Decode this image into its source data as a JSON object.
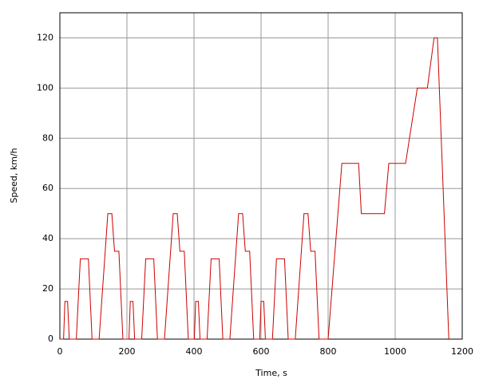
{
  "chart_data": {
    "type": "line",
    "xlabel": "Time, s",
    "ylabel": "Speed, km/h",
    "x": [
      0,
      11,
      15,
      23,
      28,
      49,
      61,
      85,
      96,
      117,
      143,
      155,
      163,
      176,
      188,
      195,
      206,
      210,
      218,
      223,
      244,
      256,
      280,
      291,
      312,
      338,
      350,
      358,
      371,
      383,
      390,
      401,
      405,
      413,
      418,
      439,
      451,
      475,
      486,
      507,
      533,
      545,
      553,
      566,
      578,
      585,
      596,
      600,
      608,
      613,
      634,
      646,
      670,
      681,
      702,
      728,
      740,
      748,
      761,
      773,
      800,
      841,
      891,
      899,
      968,
      981,
      1031,
      1066,
      1096,
      1116,
      1126,
      1160
    ],
    "series": [
      {
        "name": "Speed",
        "color": "#cc0000",
        "values": [
          0,
          0,
          15,
          15,
          0,
          0,
          32,
          32,
          0,
          0,
          50,
          50,
          35,
          35,
          0,
          0,
          0,
          15,
          15,
          0,
          0,
          32,
          32,
          0,
          0,
          50,
          50,
          35,
          35,
          0,
          0,
          0,
          15,
          15,
          0,
          0,
          32,
          32,
          0,
          0,
          50,
          50,
          35,
          35,
          0,
          0,
          0,
          15,
          15,
          0,
          0,
          32,
          32,
          0,
          0,
          50,
          50,
          35,
          35,
          0,
          0,
          70,
          70,
          50,
          50,
          70,
          70,
          100,
          100,
          120,
          120,
          0
        ]
      }
    ],
    "xlim": [
      0,
      1200
    ],
    "xticks": [
      0,
      200,
      400,
      600,
      800,
      1000,
      1200
    ],
    "ylim": [
      0,
      130
    ],
    "yticks": [
      0,
      20,
      40,
      60,
      80,
      100,
      120
    ],
    "grid": true
  }
}
